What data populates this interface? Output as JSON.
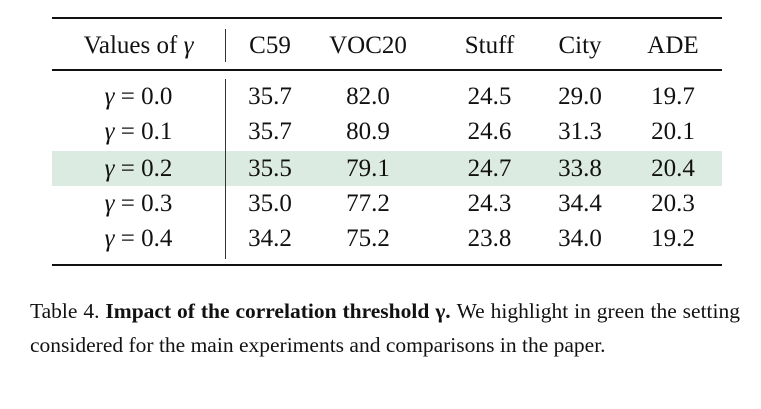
{
  "table": {
    "highlight_color": "#dcebe1",
    "highlight_row_index": 2,
    "header": {
      "first_prefix": "Values of",
      "symbol": "γ",
      "columns": [
        "C59",
        "VOC20",
        "Stuff",
        "City",
        "ADE"
      ]
    },
    "rows": [
      {
        "label": "0.0",
        "values": [
          "35.7",
          "82.0",
          "24.5",
          "29.0",
          "19.7"
        ]
      },
      {
        "label": "0.1",
        "values": [
          "35.7",
          "80.9",
          "24.6",
          "31.3",
          "20.1"
        ]
      },
      {
        "label": "0.2",
        "values": [
          "35.5",
          "79.1",
          "24.7",
          "33.8",
          "20.4"
        ]
      },
      {
        "label": "0.3",
        "values": [
          "35.0",
          "77.2",
          "24.3",
          "34.4",
          "20.3"
        ]
      },
      {
        "label": "0.4",
        "values": [
          "34.2",
          "75.2",
          "23.8",
          "34.0",
          "19.2"
        ]
      }
    ]
  },
  "caption": {
    "number": "Table 4.",
    "title": "Impact of the correlation threshold γ.",
    "text": "We highlight in green the setting considered for the main experiments and comparisons in the paper."
  }
}
